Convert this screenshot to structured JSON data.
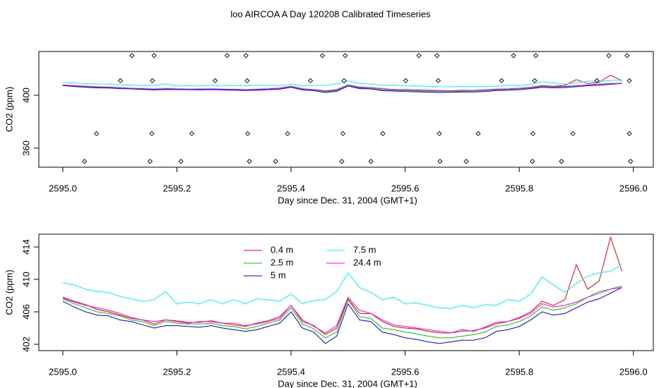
{
  "chart_data": [
    {
      "type": "scatter",
      "title": "loo AIRCOA A  Day 120208  Calibrated Timeseries",
      "xlabel": "Day since Dec. 31, 2004 (GMT+1)",
      "ylabel": "CO2 (ppm)",
      "x": [
        2595.121,
        2595.16,
        2595.288,
        2595.321,
        2595.455,
        2595.495,
        2595.624,
        2595.656,
        2595.79,
        2595.829,
        2595.957,
        2595.989,
        2595.101,
        2595.157,
        2595.267,
        2595.323,
        2595.434,
        2595.493,
        2595.601,
        2595.658,
        2595.769,
        2595.827,
        2595.936,
        2595.993,
        2595.059,
        2595.156,
        2595.226,
        2595.324,
        2595.394,
        2595.491,
        2595.561,
        2595.66,
        2595.728,
        2595.824,
        2595.894,
        2595.993,
        2595.038,
        2595.153,
        2595.207,
        2595.327,
        2595.373,
        2595.489,
        2595.54,
        2595.661,
        2595.707,
        2595.823,
        2595.874,
        2595.995
      ],
      "values": [
        430,
        430,
        430,
        430,
        430,
        430,
        430,
        430,
        430,
        430,
        430,
        430,
        411,
        411,
        411,
        411,
        411,
        411,
        411,
        411,
        411,
        411,
        411,
        411,
        371,
        371,
        371,
        371,
        371,
        371,
        371,
        371,
        371,
        371,
        371,
        371,
        350,
        350,
        350,
        350,
        350,
        350,
        350,
        350,
        350,
        350,
        350,
        350
      ],
      "color": "#000000",
      "xlim": [
        2594.958,
        2596.035
      ],
      "ylim": [
        345.6,
        433.1
      ],
      "xticks": [
        {
          "value": 2595,
          "label": "2595.0"
        },
        2595.2,
        2595.4,
        2595.6,
        2595.8,
        {
          "value": 2596,
          "label": "2596.0"
        }
      ],
      "yticks": [
        360,
        400
      ]
    },
    {
      "type": "line",
      "xlabel": "Day since Dec. 31, 2004 (GMT+1)",
      "ylabel": "CO2 (ppm)",
      "x": [
        2595.0,
        2595.02,
        2595.04,
        2595.06,
        2595.08,
        2595.1,
        2595.12,
        2595.14,
        2595.16,
        2595.18,
        2595.2,
        2595.22,
        2595.24,
        2595.26,
        2595.28,
        2595.3,
        2595.32,
        2595.34,
        2595.36,
        2595.38,
        2595.4,
        2595.42,
        2595.44,
        2595.46,
        2595.48,
        2595.5,
        2595.52,
        2595.54,
        2595.56,
        2595.58,
        2595.6,
        2595.62,
        2595.64,
        2595.66,
        2595.68,
        2595.7,
        2595.72,
        2595.74,
        2595.76,
        2595.78,
        2595.8,
        2595.82,
        2595.84,
        2595.86,
        2595.88,
        2595.9,
        2595.92,
        2595.94,
        2595.96,
        2595.98
      ],
      "series": [
        {
          "name": "0.4 m",
          "color": "#ff0000",
          "values": [
            407.8,
            407.3,
            406.9,
            406.3,
            406.0,
            405.6,
            405.2,
            405.0,
            404.5,
            405.0,
            404.8,
            404.6,
            404.8,
            404.8,
            404.6,
            404.4,
            404.2,
            404.6,
            404.9,
            405.4,
            406.8,
            404.8,
            404.3,
            403.2,
            404.0,
            407.6,
            405.8,
            405.8,
            404.8,
            404.2,
            404.0,
            403.9,
            403.6,
            403.4,
            403.4,
            403.8,
            403.6,
            404.1,
            404.7,
            404.8,
            405.3,
            406.0,
            407.3,
            406.8,
            407.5,
            411.8,
            408.8,
            409.8,
            415.2,
            411.0
          ]
        },
        {
          "name": "2.5 m",
          "color": "#00cd00",
          "values": [
            407.6,
            407.0,
            406.5,
            406.0,
            405.8,
            405.5,
            405.0,
            404.8,
            404.3,
            404.8,
            404.6,
            404.5,
            404.5,
            404.6,
            404.3,
            404.2,
            403.9,
            404.2,
            404.6,
            405.0,
            406.5,
            404.5,
            403.9,
            402.8,
            403.5,
            407.5,
            405.4,
            405.2,
            404.0,
            403.8,
            403.5,
            403.3,
            403.0,
            402.8,
            402.8,
            403.0,
            403.2,
            403.5,
            404.2,
            404.4,
            404.8,
            405.5,
            406.6,
            406.2,
            406.5,
            407.0,
            407.8,
            408.5,
            408.8,
            409.2
          ]
        },
        {
          "name": "5 m",
          "color": "#0000ff",
          "values": [
            407.3,
            406.6,
            406.0,
            405.6,
            405.5,
            405.0,
            404.8,
            404.4,
            404.0,
            404.3,
            404.3,
            404.2,
            404.1,
            404.3,
            404.0,
            403.8,
            403.6,
            403.8,
            404.2,
            404.6,
            406.0,
            404.0,
            403.5,
            402.1,
            403.0,
            407.0,
            405.0,
            404.8,
            403.5,
            403.2,
            402.8,
            402.6,
            402.3,
            402.1,
            402.3,
            402.5,
            402.5,
            402.8,
            403.6,
            403.8,
            404.2,
            405.0,
            406.0,
            405.6,
            405.8,
            406.5,
            407.2,
            407.6,
            408.3,
            409.0
          ]
        },
        {
          "name": "7.5 m",
          "color": "#00ffff",
          "values": [
            409.6,
            409.3,
            408.8,
            408.5,
            408.4,
            407.9,
            407.6,
            407.3,
            407.5,
            408.5,
            407.0,
            407.2,
            407.0,
            407.5,
            407.0,
            407.5,
            407.0,
            407.6,
            407.5,
            407.3,
            408.2,
            407.0,
            407.4,
            407.5,
            408.5,
            410.8,
            409.0,
            408.4,
            407.5,
            407.8,
            407.0,
            407.1,
            406.8,
            406.5,
            406.4,
            406.8,
            406.5,
            406.9,
            406.8,
            407.5,
            407.3,
            408.2,
            410.3,
            409.3,
            408.4,
            409.5,
            410.4,
            410.8,
            411.0,
            411.8
          ]
        },
        {
          "name": "24.4 m",
          "color": "#ff00ff",
          "values": [
            407.7,
            407.2,
            406.8,
            406.5,
            406.2,
            405.8,
            405.3,
            405.0,
            404.8,
            405.0,
            404.9,
            404.7,
            404.7,
            404.9,
            404.6,
            404.6,
            404.3,
            404.5,
            404.8,
            405.2,
            406.8,
            405.0,
            404.2,
            403.4,
            404.3,
            407.8,
            406.2,
            405.8,
            405.0,
            404.4,
            404.2,
            404.0,
            403.8,
            403.6,
            403.4,
            403.6,
            403.7,
            404.0,
            404.5,
            404.8,
            405.2,
            405.8,
            407.0,
            406.6,
            406.8,
            407.2,
            407.8,
            408.3,
            408.8,
            409.0
          ]
        }
      ],
      "legend": "top",
      "xlim": [
        2594.958,
        2596.035
      ],
      "ylim": [
        401.22,
        415.57
      ],
      "xticks": [
        {
          "value": 2595,
          "label": "2595.0"
        },
        2595.2,
        2595.4,
        2595.6,
        2595.8,
        {
          "value": 2596,
          "label": "2596.0"
        }
      ],
      "yticks": [
        402,
        406,
        410,
        414
      ]
    }
  ]
}
